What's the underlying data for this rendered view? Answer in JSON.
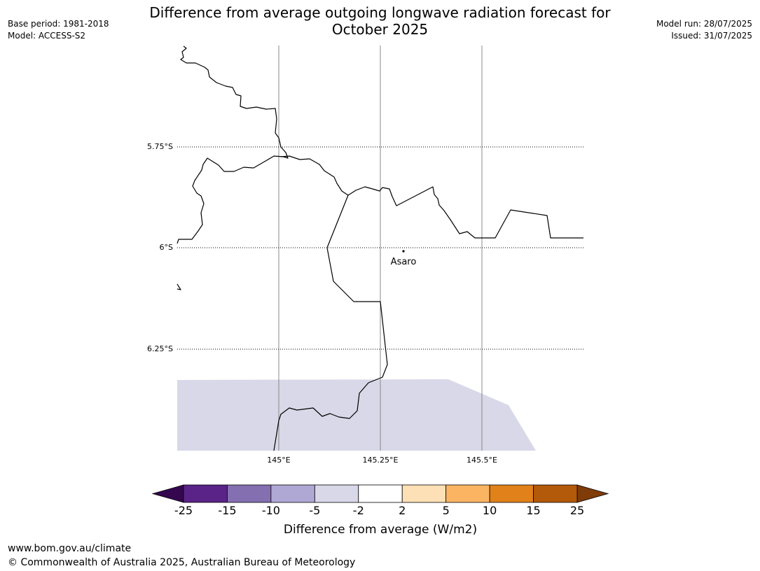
{
  "header": {
    "title_line1": "Difference from average outgoing longwave radiation forecast for",
    "title_line2": "October 2025",
    "base_period": "Base period: 1981-2018",
    "model": "Model: ACCESS-S2",
    "model_run": "Model run: 28/07/2025",
    "issued": "Issued: 31/07/2025"
  },
  "map": {
    "lat_labels": [
      "5.75°S",
      "6°S",
      "6.25°S"
    ],
    "lon_labels": [
      "145°E",
      "145.25°E",
      "145.5°E"
    ],
    "place": {
      "name": "Asaro"
    },
    "anomaly_fill_color": "#d8d8e8",
    "anomaly_category": "-5 to -2"
  },
  "colorbar": {
    "title": "Difference from average (W/m2)",
    "ticks": [
      "-25",
      "-15",
      "-10",
      "-5",
      "-2",
      "2",
      "5",
      "10",
      "15",
      "25"
    ],
    "colors": [
      "#5a2387",
      "#8470b0",
      "#b0a8d4",
      "#d8d8e8",
      "#ffffff",
      "#fde0b6",
      "#fbb562",
      "#e0811a",
      "#b3590a"
    ],
    "low_extend_color": "#35074f",
    "high_extend_color": "#7f3b08"
  },
  "footer": {
    "url": "www.bom.gov.au/climate",
    "copyright": "© Commonwealth of Australia 2025, Australian Bureau of Meteorology"
  }
}
